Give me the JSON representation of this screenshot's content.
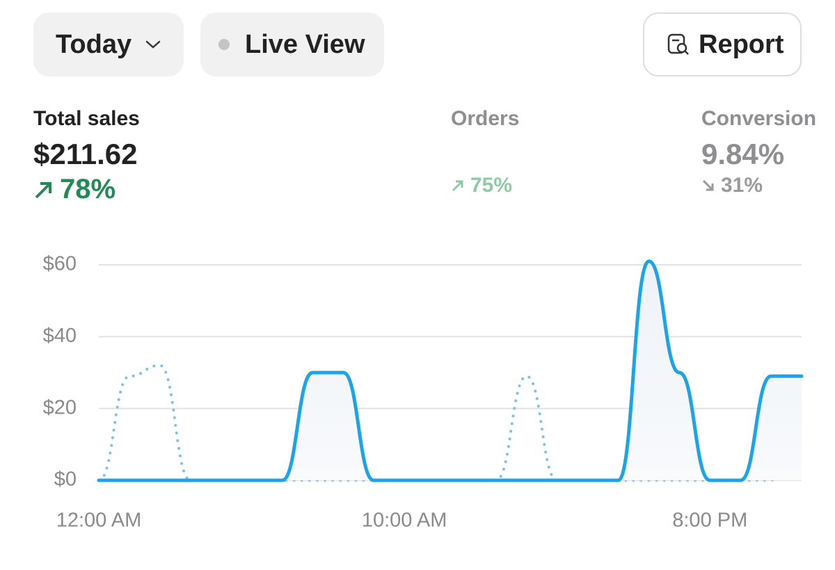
{
  "toolbar": {
    "date_button": "Today",
    "live_button": "Live View",
    "report_button": "Report"
  },
  "metrics": [
    {
      "label": "Total sales",
      "value": "$211.62",
      "change": "78%"
    },
    {
      "label": "Orders",
      "change": "75%"
    },
    {
      "label": "Conversion",
      "value": "9.84%",
      "change": "31%"
    }
  ],
  "chart_data": {
    "type": "line",
    "categories": [
      "12:00 AM",
      null,
      null,
      null,
      null,
      null,
      null,
      null,
      null,
      null,
      "10:00 AM",
      null,
      null,
      null,
      null,
      null,
      null,
      null,
      null,
      null,
      "8:00 PM",
      null,
      null,
      null
    ],
    "series": [
      {
        "color": "#1da4e8",
        "style": "solid",
        "values": [
          0,
          0,
          0,
          0,
          0,
          0,
          0,
          30,
          30,
          0,
          0,
          0,
          0,
          0,
          0,
          0,
          0,
          0,
          61,
          30,
          0,
          0,
          29,
          29
        ]
      },
      {
        "color": "#7ec3e3",
        "style": "dotted",
        "values": [
          0,
          29,
          32,
          0,
          0,
          0,
          0,
          0,
          0,
          0,
          0,
          0,
          0,
          0,
          29,
          0,
          0,
          0,
          0,
          0,
          0,
          0,
          0,
          29
        ]
      }
    ],
    "ylim": [
      0,
      60
    ],
    "yticks": [
      {
        "value": 0,
        "label": "$0"
      },
      {
        "value": 20,
        "label": "$20"
      },
      {
        "value": 40,
        "label": "$40"
      },
      {
        "value": 60,
        "label": "$60"
      }
    ],
    "grid": true
  }
}
